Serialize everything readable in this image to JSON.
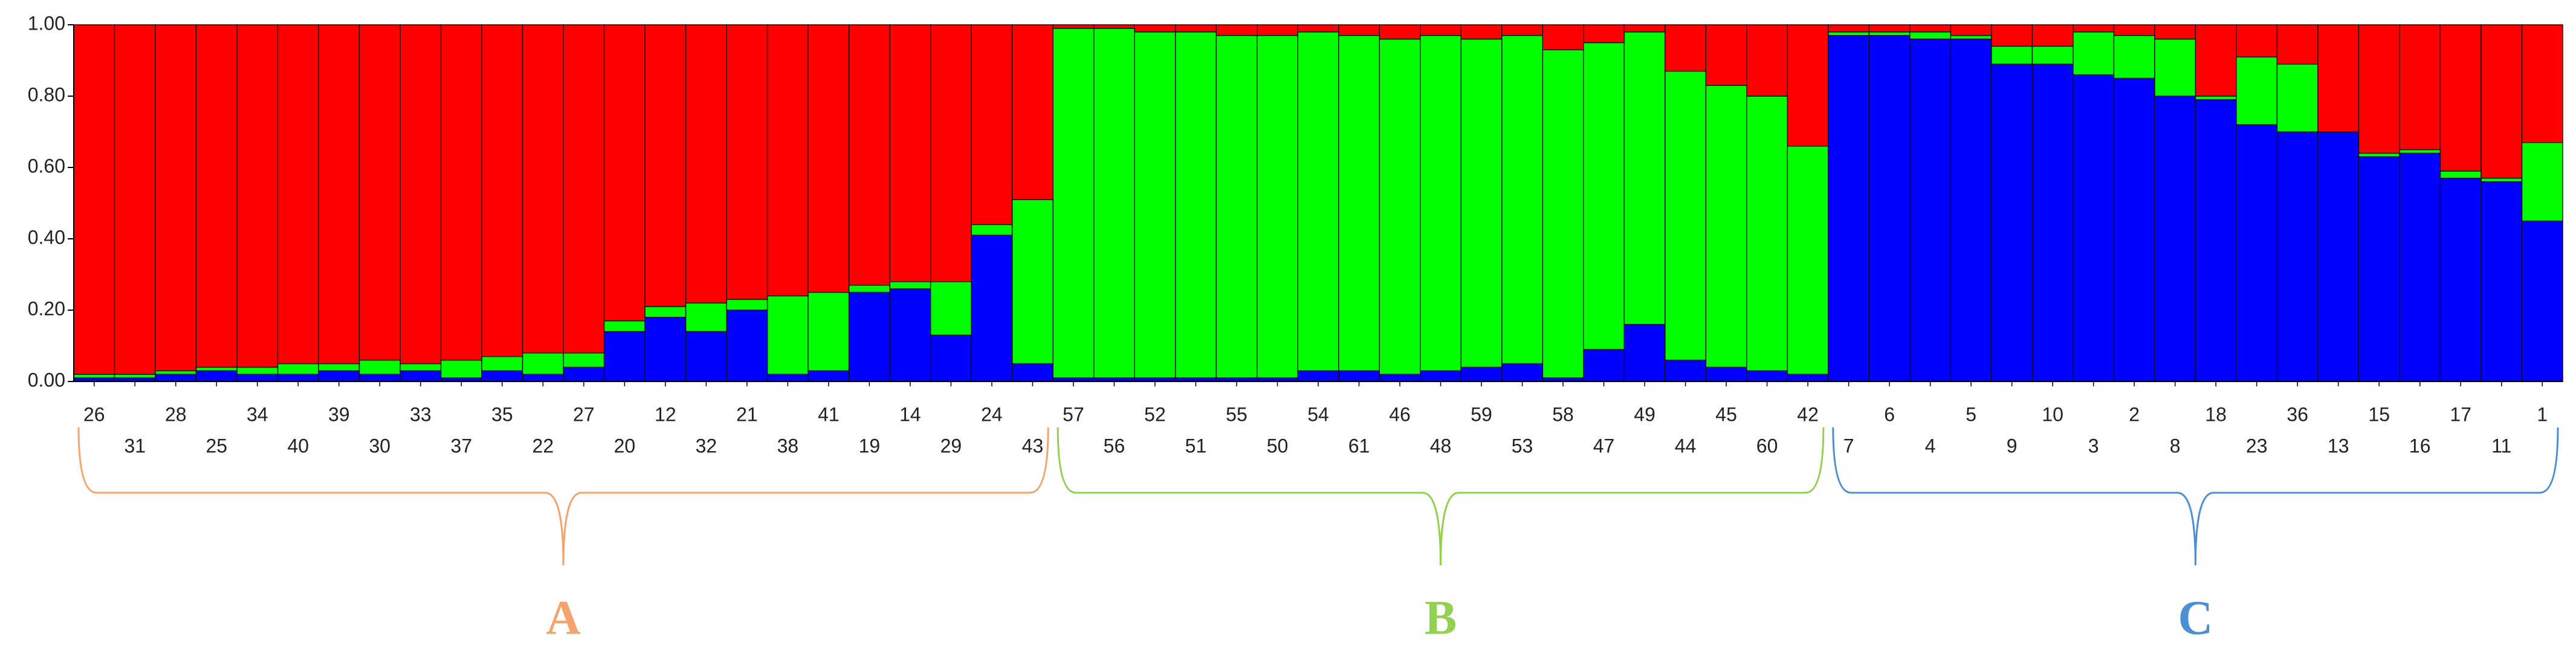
{
  "chart_data": {
    "type": "stacked_bar",
    "categories": [
      "26",
      "31",
      "28",
      "25",
      "34",
      "40",
      "39",
      "30",
      "33",
      "37",
      "35",
      "22",
      "27",
      "20",
      "12",
      "32",
      "21",
      "38",
      "41",
      "19",
      "14",
      "29",
      "24",
      "43",
      "57",
      "56",
      "52",
      "51",
      "55",
      "50",
      "54",
      "61",
      "46",
      "48",
      "59",
      "53",
      "58",
      "47",
      "49",
      "44",
      "45",
      "60",
      "42",
      "7",
      "6",
      "4",
      "5",
      "9",
      "10",
      "3",
      "2",
      "8",
      "18",
      "23",
      "36",
      "13",
      "15",
      "16",
      "17",
      "11",
      "1"
    ],
    "series": [
      {
        "color": "#0000ff",
        "values": [
          0.01,
          0.01,
          0.02,
          0.03,
          0.02,
          0.02,
          0.03,
          0.02,
          0.03,
          0.01,
          0.03,
          0.02,
          0.04,
          0.14,
          0.18,
          0.14,
          0.2,
          0.02,
          0.03,
          0.25,
          0.26,
          0.13,
          0.41,
          0.05,
          0.01,
          0.01,
          0.01,
          0.01,
          0.01,
          0.01,
          0.03,
          0.03,
          0.02,
          0.03,
          0.04,
          0.05,
          0.01,
          0.09,
          0.16,
          0.06,
          0.04,
          0.03,
          0.02,
          0.97,
          0.97,
          0.96,
          0.96,
          0.89,
          0.89,
          0.86,
          0.85,
          0.8,
          0.79,
          0.72,
          0.7,
          0.7,
          0.63,
          0.64,
          0.57,
          0.56,
          0.45
        ]
      },
      {
        "color": "#00ff00",
        "values": [
          0.01,
          0.01,
          0.01,
          0.01,
          0.02,
          0.03,
          0.02,
          0.04,
          0.02,
          0.05,
          0.04,
          0.06,
          0.04,
          0.03,
          0.03,
          0.08,
          0.03,
          0.22,
          0.22,
          0.02,
          0.02,
          0.15,
          0.03,
          0.46,
          0.98,
          0.98,
          0.97,
          0.97,
          0.96,
          0.96,
          0.95,
          0.94,
          0.94,
          0.94,
          0.92,
          0.92,
          0.92,
          0.86,
          0.82,
          0.81,
          0.79,
          0.77,
          0.64,
          0.01,
          0.01,
          0.02,
          0.01,
          0.05,
          0.05,
          0.12,
          0.12,
          0.16,
          0.01,
          0.19,
          0.19,
          0.0,
          0.01,
          0.01,
          0.02,
          0.01,
          0.22
        ]
      },
      {
        "color": "#ff0000",
        "values": [
          0.98,
          0.98,
          0.97,
          0.96,
          0.96,
          0.95,
          0.95,
          0.94,
          0.95,
          0.94,
          0.93,
          0.92,
          0.92,
          0.83,
          0.79,
          0.78,
          0.77,
          0.76,
          0.75,
          0.73,
          0.72,
          0.72,
          0.56,
          0.49,
          0.01,
          0.01,
          0.02,
          0.02,
          0.03,
          0.03,
          0.02,
          0.03,
          0.04,
          0.03,
          0.04,
          0.03,
          0.07,
          0.05,
          0.02,
          0.13,
          0.17,
          0.2,
          0.34,
          0.02,
          0.02,
          0.02,
          0.03,
          0.06,
          0.06,
          0.02,
          0.03,
          0.04,
          0.2,
          0.09,
          0.11,
          0.3,
          0.36,
          0.35,
          0.41,
          0.43,
          0.33
        ]
      }
    ],
    "ylim": [
      0,
      1
    ],
    "yticks": [
      {
        "value": 0,
        "label": "0.00"
      },
      {
        "value": 0.2,
        "label": "0.20"
      },
      {
        "value": 0.4,
        "label": "0.40"
      },
      {
        "value": 0.6,
        "label": "0.60"
      },
      {
        "value": 0.8,
        "label": "0.80"
      },
      {
        "value": 1,
        "label": "1.00"
      }
    ],
    "groups": [
      {
        "label": "A",
        "from": "26",
        "to": "43",
        "color": "#f4a46a"
      },
      {
        "label": "B",
        "from": "57",
        "to": "42",
        "color": "#92d050"
      },
      {
        "label": "C",
        "from": "7",
        "to": "1",
        "color": "#4a8fd4"
      }
    ]
  }
}
